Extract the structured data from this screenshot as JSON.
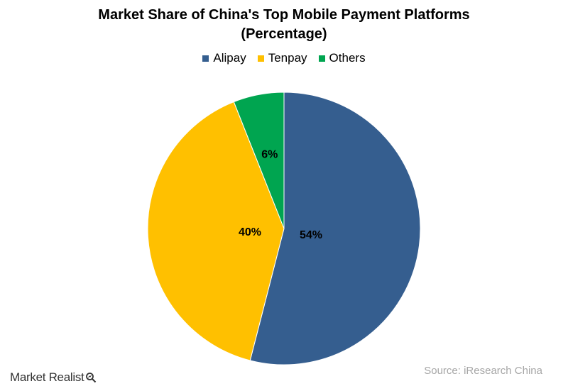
{
  "chart_data": {
    "type": "pie",
    "title_line1": "Market Share of China's Top Mobile Payment Platforms",
    "title_line2": "(Percentage)",
    "series": [
      {
        "name": "Alipay",
        "value": 54,
        "label": "54%",
        "color": "#355E8F"
      },
      {
        "name": "Tenpay",
        "value": 40,
        "label": "40%",
        "color": "#FFC000"
      },
      {
        "name": "Others",
        "value": 6,
        "label": "6%",
        "color": "#00A550"
      }
    ],
    "legend_position": "top"
  },
  "footer": {
    "brand": "Market Realist",
    "brand_icon": "magnifier-icon",
    "source": "Source: iResearch China"
  }
}
